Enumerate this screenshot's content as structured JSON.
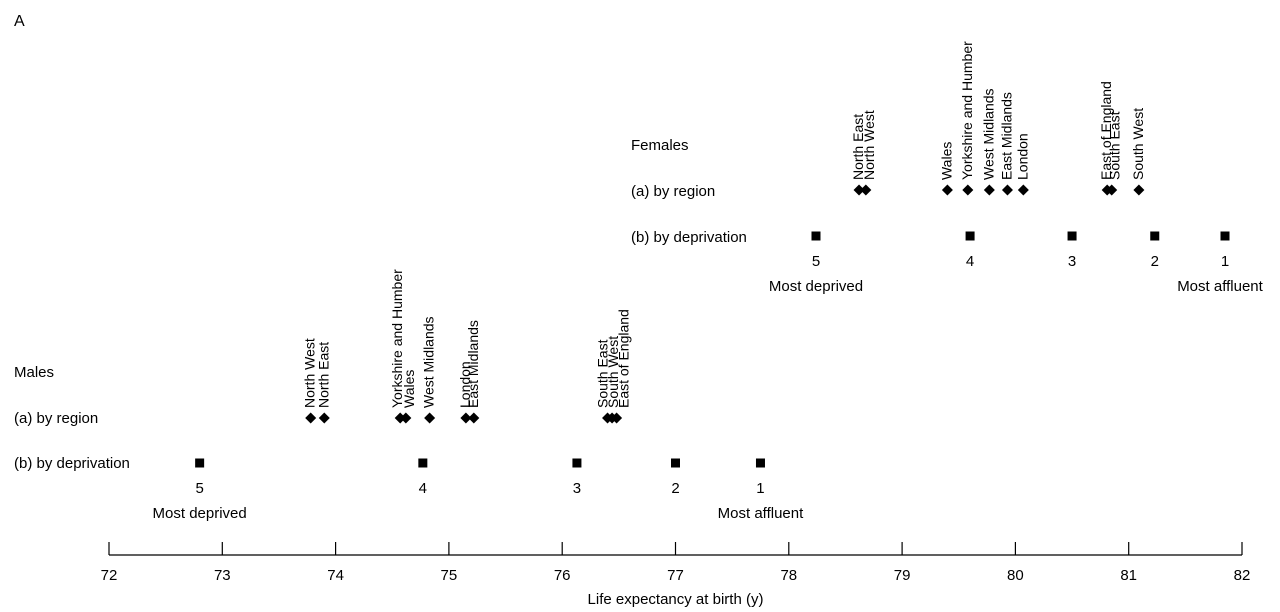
{
  "chart_data": {
    "type": "scatter",
    "panel_label": "A",
    "xlabel": "Life expectancy at birth (y)",
    "xlim": [
      72,
      82
    ],
    "xticks": [
      "72",
      "73",
      "74",
      "75",
      "76",
      "77",
      "78",
      "79",
      "80",
      "81",
      "82"
    ],
    "groups": [
      {
        "name": "Females",
        "region_row_label": "(a) by region",
        "deprivation_row_label": "(b) by deprivation",
        "regions": [
          {
            "name": "North East",
            "x": 78.62
          },
          {
            "name": "North West",
            "x": 78.68
          },
          {
            "name": "Wales",
            "x": 79.4
          },
          {
            "name": "Yorkshire and Humber",
            "x": 79.58
          },
          {
            "name": "West Midlands",
            "x": 79.77
          },
          {
            "name": "East Midlands",
            "x": 79.93
          },
          {
            "name": "London",
            "x": 80.07
          },
          {
            "name": "East of England",
            "x": 80.81
          },
          {
            "name": "South East",
            "x": 80.85
          },
          {
            "name": "South West",
            "x": 81.09
          }
        ],
        "deprivation": [
          {
            "quintile": "5",
            "x": 78.24
          },
          {
            "quintile": "4",
            "x": 79.6
          },
          {
            "quintile": "3",
            "x": 80.5
          },
          {
            "quintile": "2",
            "x": 81.23
          },
          {
            "quintile": "1",
            "x": 81.85
          }
        ],
        "most_deprived_label": "Most deprived",
        "most_affluent_label": "Most affluent"
      },
      {
        "name": "Males",
        "region_row_label": "(a) by region",
        "deprivation_row_label": "(b) by deprivation",
        "regions": [
          {
            "name": "North West",
            "x": 73.78
          },
          {
            "name": "North East",
            "x": 73.9
          },
          {
            "name": "Yorkshire and Humber",
            "x": 74.57
          },
          {
            "name": "Wales",
            "x": 74.62
          },
          {
            "name": "West Midlands",
            "x": 74.83
          },
          {
            "name": "London",
            "x": 75.15
          },
          {
            "name": "East Midlands",
            "x": 75.22
          },
          {
            "name": "South East",
            "x": 76.4
          },
          {
            "name": "South West",
            "x": 76.44
          },
          {
            "name": "East of England",
            "x": 76.48
          }
        ],
        "deprivation": [
          {
            "quintile": "5",
            "x": 72.8
          },
          {
            "quintile": "4",
            "x": 74.77
          },
          {
            "quintile": "3",
            "x": 76.13
          },
          {
            "quintile": "2",
            "x": 77.0
          },
          {
            "quintile": "1",
            "x": 77.75
          }
        ],
        "most_deprived_label": "Most deprived",
        "most_affluent_label": "Most affluent"
      }
    ]
  }
}
